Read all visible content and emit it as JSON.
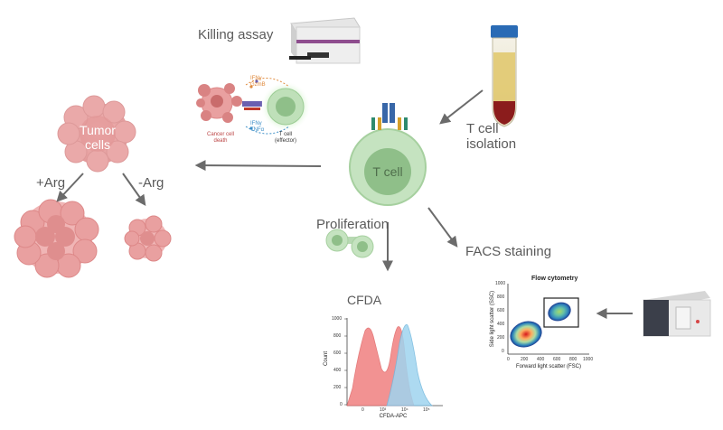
{
  "labels": {
    "killing_assay": "Killing assay",
    "t_cell_isolation_line1": "T cell",
    "t_cell_isolation_line2": "isolation",
    "tumor_cells_line1": "Tumor",
    "tumor_cells_line2": "cells",
    "plus_arg": "+Arg",
    "minus_arg": "-Arg",
    "t_cell": "T cell",
    "proliferation": "Proliferation",
    "facs_staining": "FACS staining",
    "cfda": "CFDA"
  },
  "killing_inset": {
    "ifn_gzmb_line1": "IFNγ",
    "ifn_gzmb_line2": "GzmB",
    "ifn_tnf_line1": "IFNγ",
    "ifn_tnf_line2": "TNFα",
    "cancer_death_line1": "Cancer cell",
    "cancer_death_line2": "death",
    "t_effector_line1": "T cell",
    "t_effector_line2": "(effector)"
  },
  "flow_panel": {
    "title": "Flow cytometry",
    "ylabel": "Side light scatter (SSC)",
    "xlabel": "Forward light scatter (FSC)",
    "yticks": [
      "1000",
      "800",
      "600",
      "400",
      "200",
      "0"
    ],
    "xticks": [
      "0",
      "200",
      "400",
      "600",
      "800",
      "1000"
    ]
  },
  "histogram_panel": {
    "ylabel": "Count",
    "xlabel": "CFDA-APC",
    "yticks": [
      "1000",
      "800",
      "600",
      "400",
      "200",
      "0"
    ],
    "xticks": [
      "0",
      "10³",
      "10⁴",
      "10⁵"
    ]
  },
  "colors": {
    "tumor": "#e8a3a3",
    "tumor_dark": "#d17b7b",
    "t_cell_outer": "#b8d9b3",
    "t_cell_inner": "#8fbf89",
    "arrow": "#6b6b6b",
    "hist_red": "#f08080",
    "hist_blue": "#9fd4ef",
    "tube_liquid": "#e0c76a",
    "tube_blood": "#8b1c1c",
    "tube_cap": "#2a6bb5"
  }
}
